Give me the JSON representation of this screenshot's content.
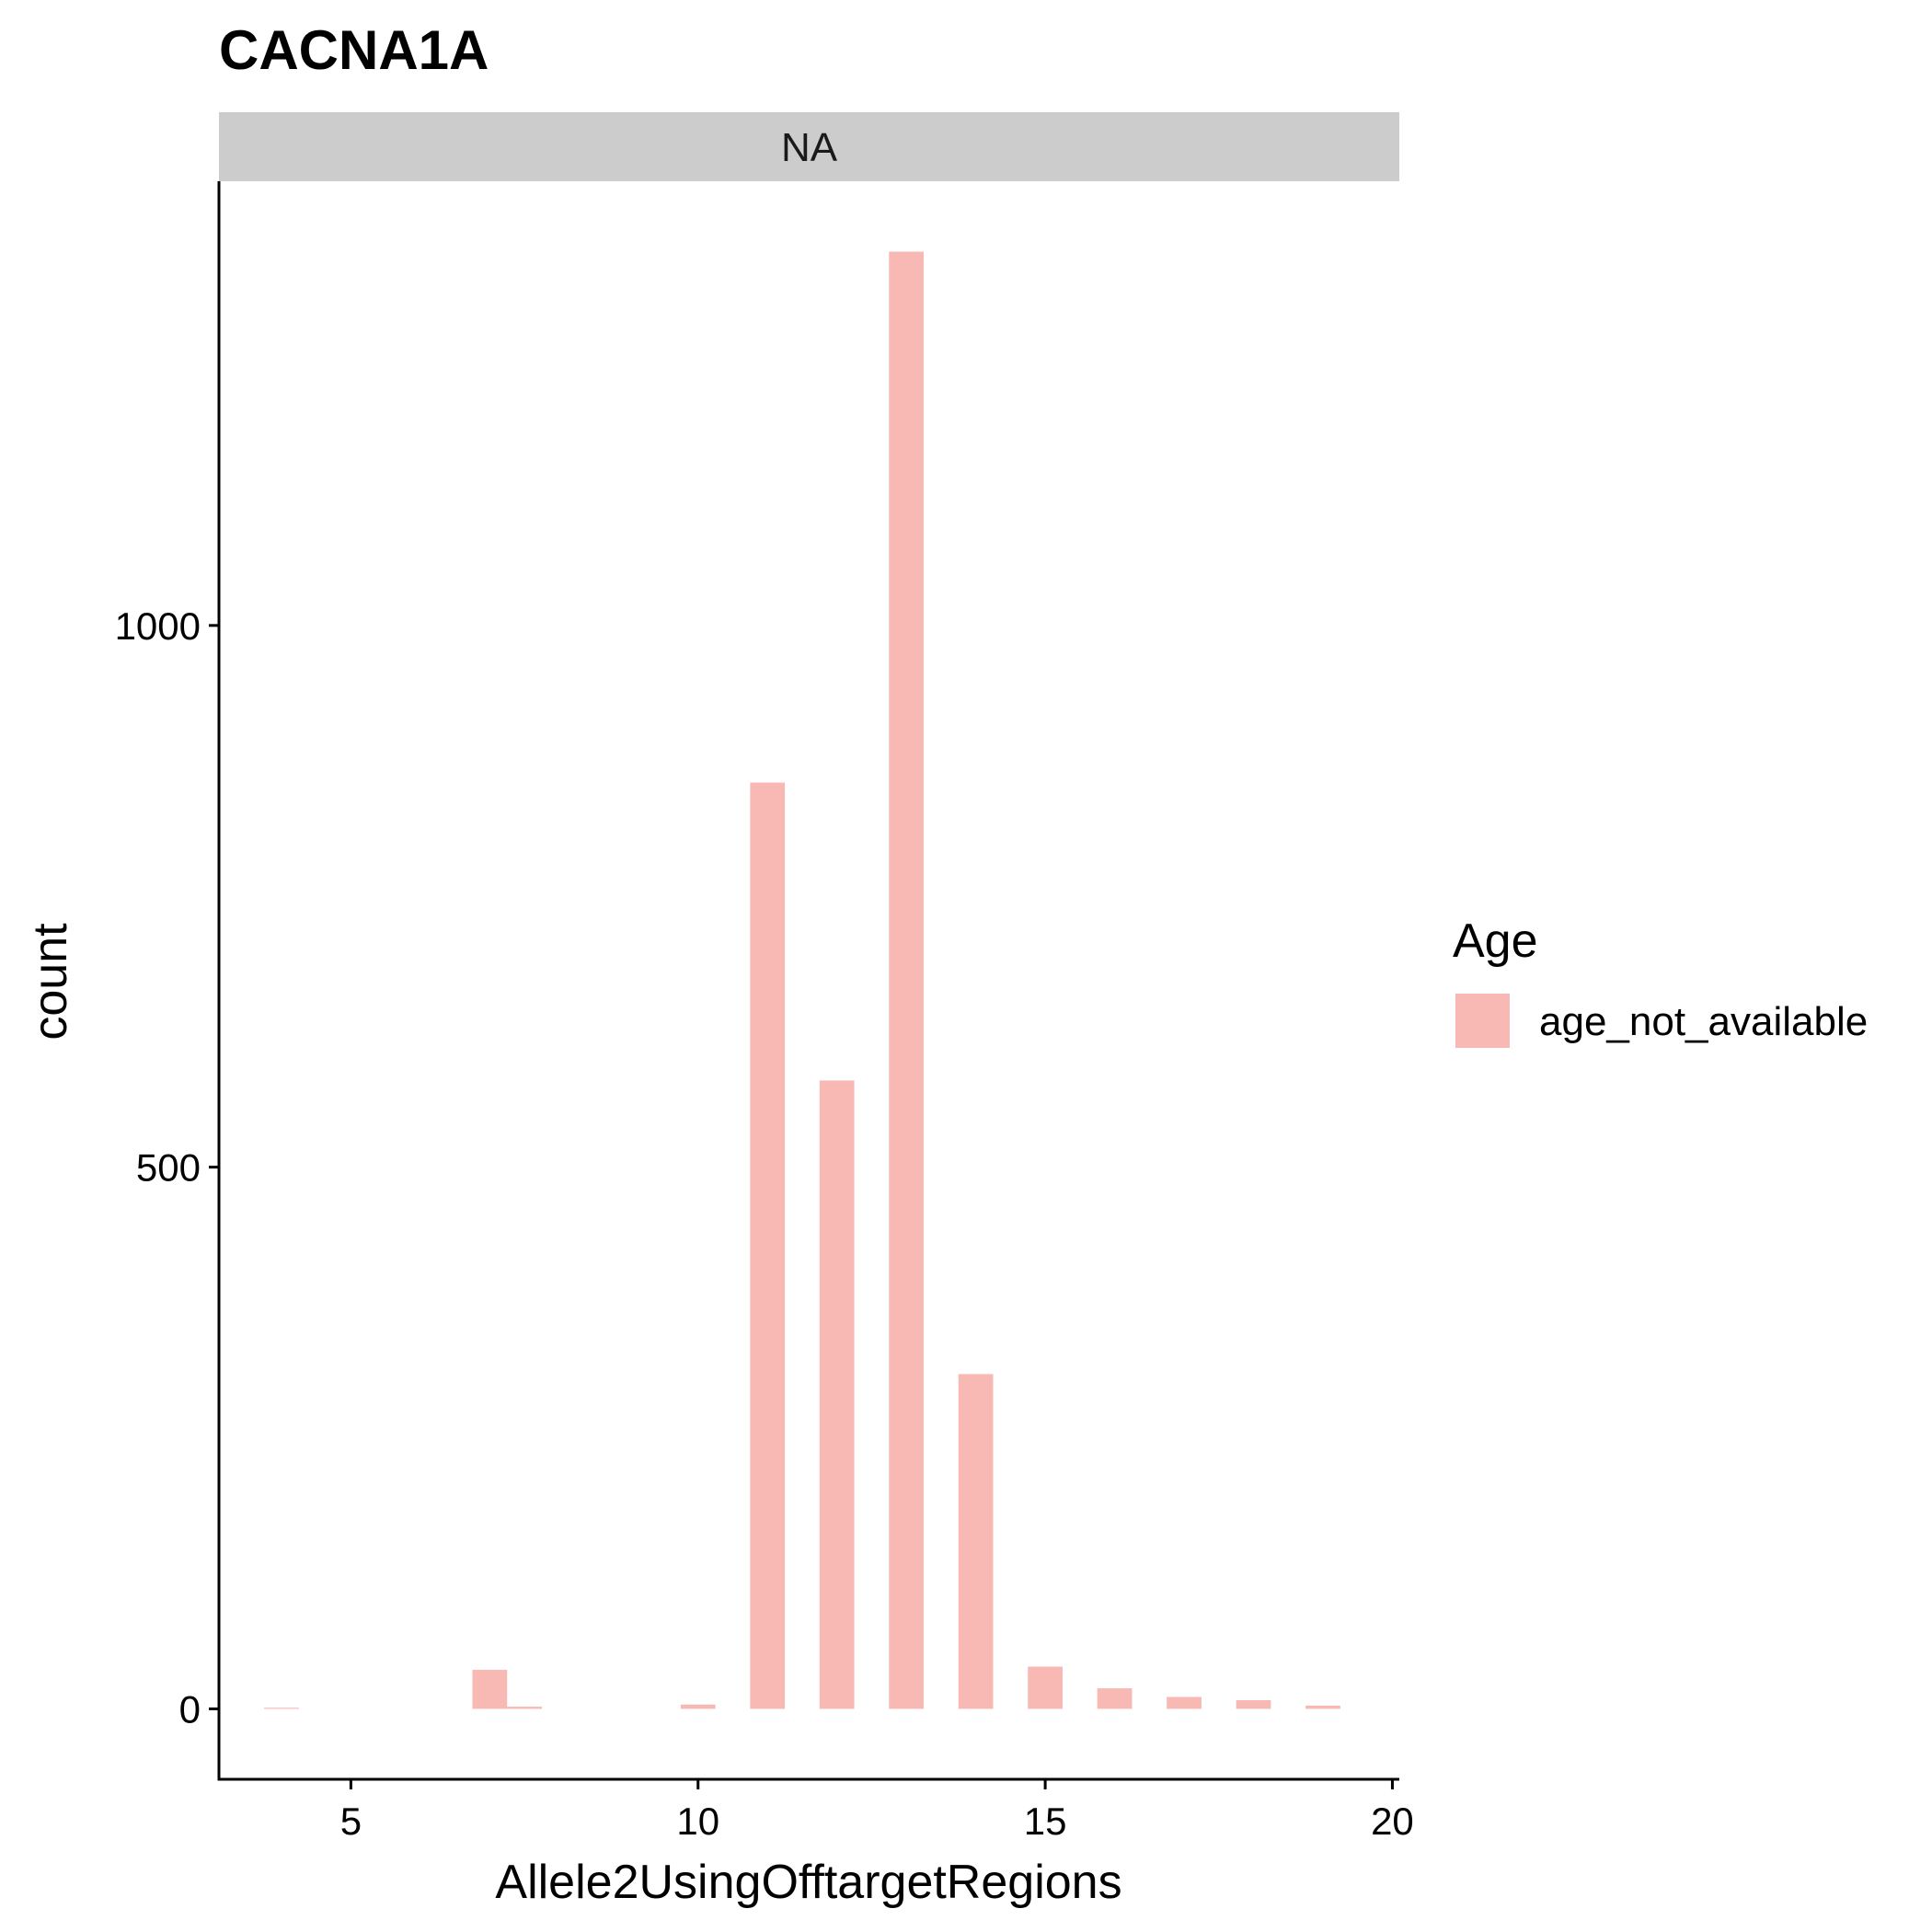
{
  "chart_data": {
    "type": "bar",
    "title": "CACNA1A",
    "facet_label": "NA",
    "xlabel": "Allele2UsingOfftargetRegions",
    "ylabel": "count",
    "xlim": [
      3.1,
      20.1
    ],
    "ylim": [
      -65,
      1410
    ],
    "x_ticks": [
      5,
      10,
      15,
      20
    ],
    "y_ticks": [
      0,
      500,
      1000
    ],
    "bar_width": 0.5,
    "grid": false,
    "legend": {
      "title": "Age",
      "position": "right",
      "entries": [
        {
          "label": "age_not_available",
          "color": "#f8b9b4"
        }
      ]
    },
    "series": [
      {
        "name": "age_not_available",
        "color": "#f8b9b4",
        "x": [
          4,
          7,
          7.5,
          10,
          11,
          12,
          13,
          14,
          15,
          16,
          17,
          18,
          19
        ],
        "values": [
          1,
          36,
          2,
          4,
          855,
          580,
          1345,
          309,
          39,
          19,
          11,
          8,
          3
        ]
      }
    ]
  }
}
